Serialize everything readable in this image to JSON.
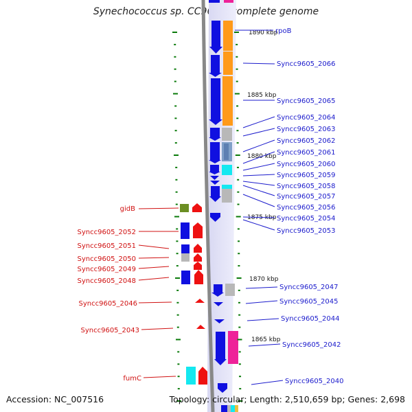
{
  "title": "Synechococcus sp. CC9605, complete genome",
  "footer": {
    "accession": "Accession: NC_007516",
    "summary": "Topology: circular; Length: 2,510,659 bp; Genes: 2,698"
  },
  "scale_labels": [
    "1890 kbp",
    "1885 kbp",
    "1880 kbp",
    "1875 kbp",
    "1870 kbp",
    "1865 kbp"
  ],
  "left_labels": [
    "gidB",
    "Syncc9605_2052",
    "Syncc9605_2051",
    "Syncc9605_2050",
    "Syncc9605_2049",
    "Syncc9605_2048",
    "Syncc9605_2046",
    "Syncc9605_2043",
    "fumC"
  ],
  "right_labels": [
    "rpoB",
    "Syncc9605_2066",
    "Syncc9605_2065",
    "Syncc9605_2064",
    "Syncc9605_2063",
    "Syncc9605_2062",
    "Syncc9605_2061",
    "Syncc9605_2060",
    "Syncc9605_2059",
    "Syncc9605_2058",
    "Syncc9605_2057",
    "Syncc9605_2056",
    "Syncc9605_2054",
    "Syncc9605_2053",
    "Syncc9605_2047",
    "Syncc9605_2045",
    "Syncc9605_2044",
    "Syncc9605_2042",
    "Syncc9605_2040"
  ],
  "colors": {
    "forward_label": "#1a1acc",
    "reverse_label": "#d01010",
    "gene_blue": "#1010e0",
    "gene_red": "#ee1111",
    "cog_orange": "#ff9a1a",
    "cog_grey": "#b8b8b8",
    "cog_steel": "#7f9fc8",
    "cog_cyan": "#14e8f0",
    "cog_pink": "#ee2299",
    "cog_olive": "#6b8e23",
    "tick_green": "#0a7a0a",
    "backbone": "#888888"
  }
}
